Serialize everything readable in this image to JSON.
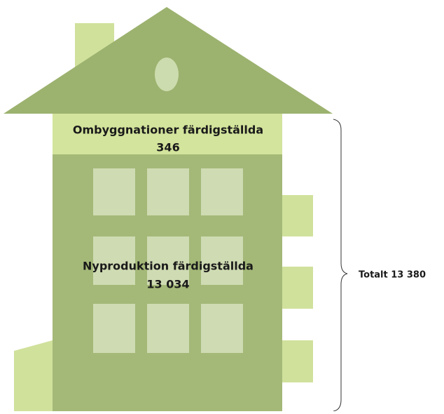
{
  "top_section": {
    "label": "Ombyggnationer färdigställda",
    "value": "346"
  },
  "main_section": {
    "label": "Nyproduktion färdigställda",
    "value": "13 034"
  },
  "total": "Totalt 13 380"
}
